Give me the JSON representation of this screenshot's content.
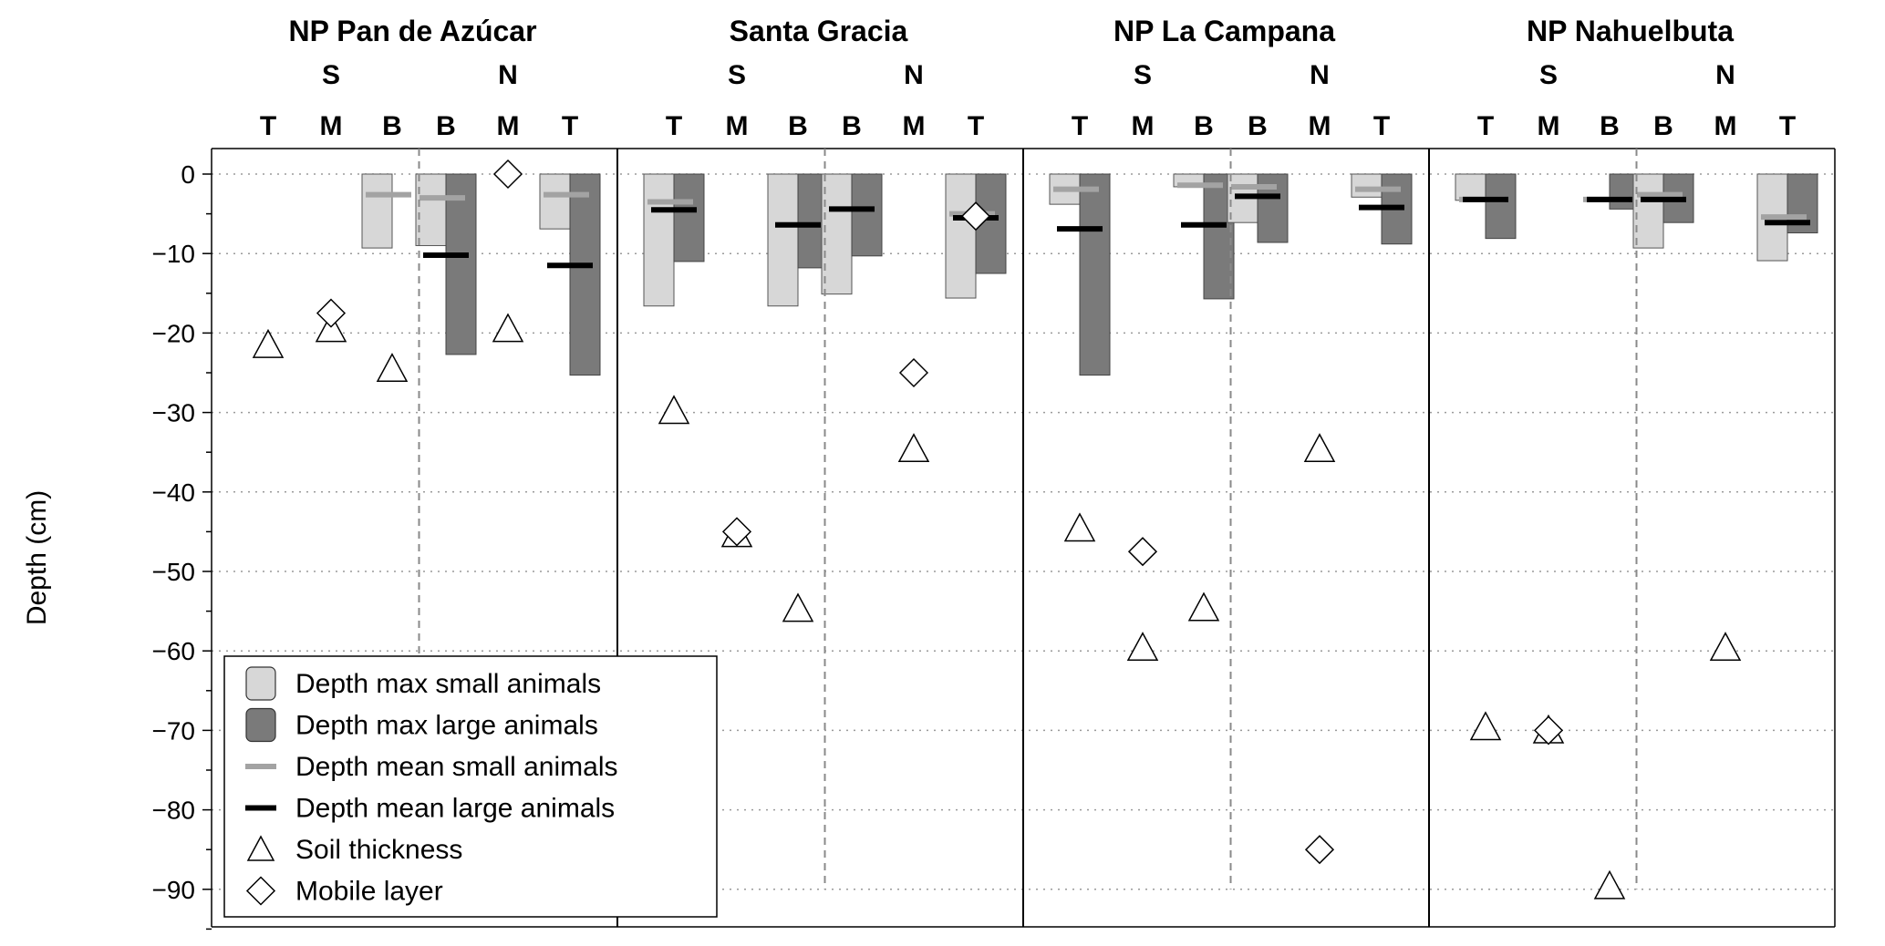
{
  "chart_data": {
    "type": "bar",
    "ylabel": "Depth (cm)",
    "ylim": [
      -95,
      3
    ],
    "yticks": [
      0,
      -10,
      -20,
      -30,
      -40,
      -50,
      -60,
      -70,
      -80,
      -90
    ],
    "grid": "horizontal dotted",
    "legend_position": "bottom-left",
    "sites": [
      {
        "name": "NP Pan de Azúcar",
        "aspects": [
          {
            "label": "S",
            "positions": [
              {
                "label": "T",
                "depth_max_small": null,
                "depth_max_large": null,
                "mean_small": null,
                "mean_large": null,
                "soil_thickness": -21.5,
                "mobile_layer": null
              },
              {
                "label": "M",
                "depth_max_small": null,
                "depth_max_large": null,
                "mean_small": null,
                "mean_large": null,
                "soil_thickness": -19.5,
                "mobile_layer": -17.5
              },
              {
                "label": "B",
                "depth_max_small": -9.3,
                "depth_max_large": null,
                "mean_small": -2.6,
                "mean_large": null,
                "soil_thickness": -24.5,
                "mobile_layer": null
              }
            ]
          },
          {
            "label": "N",
            "positions": [
              {
                "label": "B",
                "depth_max_small": -9.0,
                "depth_max_large": -22.7,
                "mean_small": -3.0,
                "mean_large": -10.2,
                "soil_thickness": null,
                "mobile_layer": null
              },
              {
                "label": "M",
                "depth_max_small": null,
                "depth_max_large": null,
                "mean_small": null,
                "mean_large": null,
                "soil_thickness": -19.5,
                "mobile_layer": 0
              },
              {
                "label": "T",
                "depth_max_small": -6.9,
                "depth_max_large": -25.3,
                "mean_small": -2.6,
                "mean_large": -11.5,
                "soil_thickness": null,
                "mobile_layer": null
              }
            ]
          }
        ]
      },
      {
        "name": "Santa Gracia",
        "aspects": [
          {
            "label": "S",
            "positions": [
              {
                "label": "T",
                "depth_max_small": -16.6,
                "depth_max_large": -11.0,
                "mean_small": -3.5,
                "mean_large": -4.5,
                "soil_thickness": -29.8,
                "mobile_layer": null
              },
              {
                "label": "M",
                "depth_max_small": null,
                "depth_max_large": null,
                "mean_small": null,
                "mean_large": null,
                "soil_thickness": -45.3,
                "mobile_layer": -45.0
              },
              {
                "label": "B",
                "depth_max_small": -16.6,
                "depth_max_large": -11.8,
                "mean_small": null,
                "mean_large": -6.4,
                "soil_thickness": -54.7,
                "mobile_layer": null
              }
            ]
          },
          {
            "label": "N",
            "positions": [
              {
                "label": "B",
                "depth_max_small": -15.1,
                "depth_max_large": -10.3,
                "mean_small": null,
                "mean_large": -4.4,
                "soil_thickness": null,
                "mobile_layer": null
              },
              {
                "label": "M",
                "depth_max_small": null,
                "depth_max_large": null,
                "mean_small": null,
                "mean_large": null,
                "soil_thickness": -34.6,
                "mobile_layer": -25.0
              },
              {
                "label": "T",
                "depth_max_small": -15.6,
                "depth_max_large": -12.5,
                "mean_small": -5.0,
                "mean_large": -5.5,
                "soil_thickness": null,
                "mobile_layer": -5.3
              }
            ]
          }
        ]
      },
      {
        "name": "NP La Campana",
        "aspects": [
          {
            "label": "S",
            "positions": [
              {
                "label": "T",
                "depth_max_small": -3.8,
                "depth_max_large": -25.3,
                "mean_small": -1.9,
                "mean_large": -6.9,
                "soil_thickness": -44.6,
                "mobile_layer": null
              },
              {
                "label": "M",
                "depth_max_small": null,
                "depth_max_large": null,
                "mean_small": null,
                "mean_large": null,
                "soil_thickness": -59.6,
                "mobile_layer": -47.5
              },
              {
                "label": "B",
                "depth_max_small": -1.6,
                "depth_max_large": -15.7,
                "mean_small": -1.4,
                "mean_large": -6.4,
                "soil_thickness": -54.6,
                "mobile_layer": null
              }
            ]
          },
          {
            "label": "N",
            "positions": [
              {
                "label": "B",
                "depth_max_small": -6.1,
                "depth_max_large": -8.6,
                "mean_small": -1.6,
                "mean_large": -2.8,
                "soil_thickness": null,
                "mobile_layer": null
              },
              {
                "label": "M",
                "depth_max_small": null,
                "depth_max_large": null,
                "mean_small": null,
                "mean_large": null,
                "soil_thickness": -34.6,
                "mobile_layer": -85.0
              },
              {
                "label": "T",
                "depth_max_small": -2.9,
                "depth_max_large": -8.8,
                "mean_small": -1.9,
                "mean_large": -4.2,
                "soil_thickness": null,
                "mobile_layer": null
              }
            ]
          }
        ]
      },
      {
        "name": "NP Nahuelbuta",
        "aspects": [
          {
            "label": "S",
            "positions": [
              {
                "label": "T",
                "depth_max_small": -3.3,
                "depth_max_large": -8.1,
                "mean_small": -3.2,
                "mean_large": -3.2,
                "soil_thickness": -69.6,
                "mobile_layer": null
              },
              {
                "label": "M",
                "depth_max_small": null,
                "depth_max_large": null,
                "mean_small": null,
                "mean_large": null,
                "soil_thickness": -70.0,
                "mobile_layer": -70.0
              },
              {
                "label": "B",
                "depth_max_small": null,
                "depth_max_large": -4.4,
                "mean_small": -3.2,
                "mean_large": -3.2,
                "soil_thickness": -89.6,
                "mobile_layer": null
              }
            ]
          },
          {
            "label": "N",
            "positions": [
              {
                "label": "B",
                "depth_max_small": -9.3,
                "depth_max_large": -6.1,
                "mean_small": -2.6,
                "mean_large": -3.2,
                "soil_thickness": null,
                "mobile_layer": null
              },
              {
                "label": "M",
                "depth_max_small": null,
                "depth_max_large": null,
                "mean_small": null,
                "mean_large": null,
                "soil_thickness": -59.6,
                "mobile_layer": null
              },
              {
                "label": "T",
                "depth_max_small": -10.9,
                "depth_max_large": -7.4,
                "mean_small": -5.4,
                "mean_large": -6.1,
                "soil_thickness": null,
                "mobile_layer": null
              }
            ]
          }
        ]
      }
    ],
    "legend": [
      {
        "key": "max_small",
        "label": "Depth max small animals"
      },
      {
        "key": "max_large",
        "label": "Depth max large animals"
      },
      {
        "key": "mean_small",
        "label": "Depth mean small animals"
      },
      {
        "key": "mean_large",
        "label": "Depth mean large animals"
      },
      {
        "key": "soil",
        "label": "Soil thickness"
      },
      {
        "key": "mobile",
        "label": "Mobile layer"
      }
    ],
    "colors": {
      "max_small": "#d7d7d7",
      "max_large": "#7a7a7a",
      "mean_small": "#a3a3a3",
      "mean_large": "#000000",
      "marker_fill": "#ffffff",
      "marker_stroke": "#000000"
    }
  }
}
